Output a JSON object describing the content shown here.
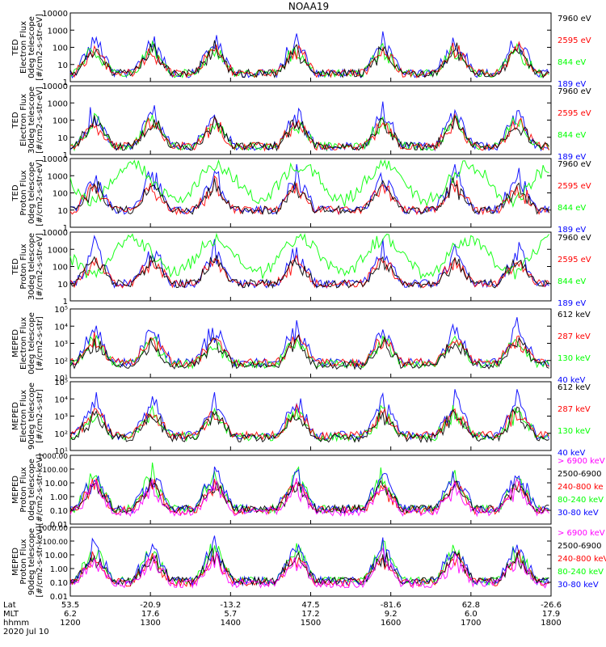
{
  "title": "NOAA19",
  "colors": {
    "black": "#000000",
    "red": "#ff0000",
    "green": "#00ff00",
    "blue": "#0000ff",
    "magenta": "#ff00ff"
  },
  "footer": {
    "row_labels": [
      "Lat",
      "MLT",
      "hhmm",
      "2020 Jul 10"
    ],
    "lat": [
      "53.5",
      "-20.9",
      "-13.2",
      "47.5",
      "-81.6",
      "62.8",
      "-26.6"
    ],
    "mlt": [
      "6.2",
      "17.6",
      "5.7",
      "17.2",
      "9.2",
      "6.0",
      "17.9"
    ],
    "hhmm": [
      "1200",
      "1300",
      "1400",
      "1500",
      "1600",
      "1700",
      "1800"
    ]
  },
  "chart_data": [
    {
      "type": "line",
      "ylabel": [
        "TED",
        "Electron Flux",
        "0deg telescope",
        "[#/cm2-s-str-eV]"
      ],
      "yticks": [
        "10000",
        "1000",
        "100",
        "10",
        "1"
      ],
      "ylim": [
        1,
        10000
      ],
      "log": true,
      "x_range": [
        "1200",
        "1800"
      ],
      "series": [
        {
          "name": "7960 eV",
          "color": "#000000"
        },
        {
          "name": "2595 eV",
          "color": "#ff0000"
        },
        {
          "name": "844 eV",
          "color": "#00ff00"
        },
        {
          "name": "189 eV",
          "color": "#0000ff"
        }
      ]
    },
    {
      "type": "line",
      "ylabel": [
        "TED",
        "Electron Flux",
        "30deg telescope",
        "[#/cm2-s-str-eV]"
      ],
      "yticks": [
        "10000",
        "1000",
        "100",
        "10",
        "1"
      ],
      "ylim": [
        1,
        10000
      ],
      "log": true,
      "x_range": [
        "1200",
        "1800"
      ],
      "series": [
        {
          "name": "7960 eV",
          "color": "#000000"
        },
        {
          "name": "2595 eV",
          "color": "#ff0000"
        },
        {
          "name": "844 eV",
          "color": "#00ff00"
        },
        {
          "name": "189 eV",
          "color": "#0000ff"
        }
      ]
    },
    {
      "type": "line",
      "ylabel": [
        "TED",
        "Proton Flux",
        "0deg telescope",
        "[#/cm2-s-str-eV]"
      ],
      "yticks": [
        "10000",
        "1000",
        "100",
        "10",
        "1"
      ],
      "ylim": [
        1,
        10000
      ],
      "log": true,
      "x_range": [
        "1200",
        "1800"
      ],
      "series": [
        {
          "name": "7960 eV",
          "color": "#000000"
        },
        {
          "name": "2595 eV",
          "color": "#ff0000"
        },
        {
          "name": "844 eV",
          "color": "#00ff00"
        },
        {
          "name": "189 eV",
          "color": "#0000ff"
        }
      ]
    },
    {
      "type": "line",
      "ylabel": [
        "TED",
        "Proton Flux",
        "30deg telescope",
        "[#/cm2-s-str-eV]"
      ],
      "yticks": [
        "10000",
        "1000",
        "100",
        "10",
        "1"
      ],
      "ylim": [
        1,
        10000
      ],
      "log": true,
      "x_range": [
        "1200",
        "1800"
      ],
      "series": [
        {
          "name": "7960 eV",
          "color": "#000000"
        },
        {
          "name": "2595 eV",
          "color": "#ff0000"
        },
        {
          "name": "844 eV",
          "color": "#00ff00"
        },
        {
          "name": "189 eV",
          "color": "#0000ff"
        }
      ]
    },
    {
      "type": "line",
      "ylabel": [
        "MEPED",
        "Electron Flux",
        "0deg telescope",
        "[#/cm2-s-str]"
      ],
      "yticks": [
        "10⁵",
        "10⁴",
        "10³",
        "10²",
        "10¹"
      ],
      "ylim": [
        10,
        100000
      ],
      "log": true,
      "x_range": [
        "1200",
        "1800"
      ],
      "series": [
        {
          "name": "612 keV",
          "color": "#000000"
        },
        {
          "name": "287 keV",
          "color": "#ff0000"
        },
        {
          "name": "130 keV",
          "color": "#00ff00"
        },
        {
          "name": "40 keV",
          "color": "#0000ff"
        }
      ]
    },
    {
      "type": "line",
      "ylabel": [
        "MEPED",
        "Electron Flux",
        "90deg telescope",
        "[#/cm2-s-str]"
      ],
      "yticks": [
        "10⁵",
        "10⁴",
        "10³",
        "10²",
        "10¹"
      ],
      "ylim": [
        10,
        100000
      ],
      "log": true,
      "x_range": [
        "1200",
        "1800"
      ],
      "series": [
        {
          "name": "612 keV",
          "color": "#000000"
        },
        {
          "name": "287 keV",
          "color": "#ff0000"
        },
        {
          "name": "130 keV",
          "color": "#00ff00"
        },
        {
          "name": "40 keV",
          "color": "#0000ff"
        }
      ]
    },
    {
      "type": "line",
      "ylabel": [
        "MEPED",
        "Proton Flux",
        "0deg telescope",
        "[#/cm2-s-str-keV]"
      ],
      "yticks": [
        "1000.00",
        "100.00",
        "10.00",
        "1.00",
        "0.10",
        "0.01"
      ],
      "ylim": [
        0.01,
        1000
      ],
      "log": true,
      "x_range": [
        "1200",
        "1800"
      ],
      "series": [
        {
          "name": "> 6900 keV",
          "color": "#ff00ff"
        },
        {
          "name": "2500-6900",
          "color": "#000000"
        },
        {
          "name": "240-800 ke",
          "color": "#ff0000"
        },
        {
          "name": "80-240 keV",
          "color": "#00ff00"
        },
        {
          "name": "30-80 keV",
          "color": "#0000ff"
        }
      ]
    },
    {
      "type": "line",
      "ylabel": [
        "MEPED",
        "Proton Flux",
        "90deg telescope",
        "[#/cm2-s-str-keV]"
      ],
      "yticks": [
        "1000.00",
        "100.00",
        "10.00",
        "1.00",
        "0.10",
        "0.01"
      ],
      "ylim": [
        0.01,
        1000
      ],
      "log": true,
      "x_range": [
        "1200",
        "1800"
      ],
      "series": [
        {
          "name": "> 6900 keV",
          "color": "#ff00ff"
        },
        {
          "name": "2500-6900",
          "color": "#000000"
        },
        {
          "name": "240-800 keV",
          "color": "#ff0000"
        },
        {
          "name": "80-240 keV",
          "color": "#00ff00"
        },
        {
          "name": "30-80 keV",
          "color": "#0000ff"
        }
      ]
    }
  ]
}
